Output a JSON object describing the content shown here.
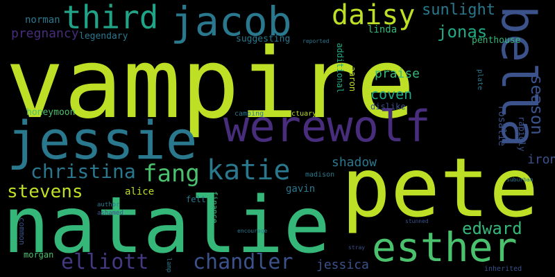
{
  "cloud": {
    "background": "#000000",
    "words": [
      {
        "text": "vampire",
        "color": "#bddf26"
      },
      {
        "text": "pete",
        "color": "#bddf26"
      },
      {
        "text": "natalie",
        "color": "#35b779"
      },
      {
        "text": "jessie",
        "color": "#2a788e"
      },
      {
        "text": "werewolf",
        "color": "#472d7b"
      },
      {
        "text": "bella",
        "color": "#3b528b"
      },
      {
        "text": "esther",
        "color": "#4ac16d"
      },
      {
        "text": "jacob",
        "color": "#2a788e"
      },
      {
        "text": "third",
        "color": "#20a386"
      },
      {
        "text": "daisy",
        "color": "#bddf26"
      },
      {
        "text": "katie",
        "color": "#2a788e"
      },
      {
        "text": "chandler",
        "color": "#3b528b"
      },
      {
        "text": "elliott",
        "color": "#443983"
      },
      {
        "text": "christina",
        "color": "#2a788e"
      },
      {
        "text": "fang",
        "color": "#4ac16d"
      },
      {
        "text": "stevens",
        "color": "#bddf26"
      },
      {
        "text": "edward",
        "color": "#35b779"
      },
      {
        "text": "season",
        "color": "#3b528b"
      },
      {
        "text": "jonas",
        "color": "#22a884"
      },
      {
        "text": "sunlight",
        "color": "#2a788e"
      },
      {
        "text": "coven",
        "color": "#22a884"
      },
      {
        "text": "praise",
        "color": "#35b779"
      },
      {
        "text": "shadow",
        "color": "#2a788e"
      },
      {
        "text": "iron",
        "color": "#3b528b"
      },
      {
        "text": "jessica",
        "color": "#3b528b"
      },
      {
        "text": "pregnancy",
        "color": "#472d7b"
      },
      {
        "text": "norman",
        "color": "#2a788e"
      },
      {
        "text": "legendary",
        "color": "#2a788e"
      },
      {
        "text": "linda",
        "color": "#35b779"
      },
      {
        "text": "penthouse",
        "color": "#35b779"
      },
      {
        "text": "suggesting",
        "color": "#2a788e"
      },
      {
        "text": "honeymoon",
        "color": "#4ac16d"
      },
      {
        "text": "alice",
        "color": "#bddf26"
      },
      {
        "text": "gavin",
        "color": "#2a788e"
      },
      {
        "text": "rosalie",
        "color": "#3b528b"
      },
      {
        "text": "rapidly",
        "color": "#3b528b"
      },
      {
        "text": "additional",
        "color": "#22a884"
      },
      {
        "text": "aaron",
        "color": "#bddf26"
      },
      {
        "text": "dislike",
        "color": "#3b528b"
      },
      {
        "text": "sanctuary",
        "color": "#bddf26"
      },
      {
        "text": "camping",
        "color": "#2a788e"
      },
      {
        "text": "madison",
        "color": "#2a788e"
      },
      {
        "text": "felt",
        "color": "#2a788e"
      },
      {
        "text": "finance",
        "color": "#35b779"
      },
      {
        "text": "plate",
        "color": "#2a788e"
      },
      {
        "text": "morgan",
        "color": "#4ac16d"
      },
      {
        "text": "common",
        "color": "#3b528b"
      },
      {
        "text": "author",
        "color": "#2a788e"
      },
      {
        "text": "ashamed",
        "color": "#3b528b"
      },
      {
        "text": "inherited",
        "color": "#3b528b"
      },
      {
        "text": "lamp",
        "color": "#2a788e"
      },
      {
        "text": "encourage",
        "color": "#2a788e"
      },
      {
        "text": "stunned",
        "color": "#3b528b"
      },
      {
        "text": "suburban",
        "color": "#2a788e"
      },
      {
        "text": "reported",
        "color": "#2a788e"
      },
      {
        "text": "stray",
        "color": "#3b528b"
      }
    ]
  }
}
